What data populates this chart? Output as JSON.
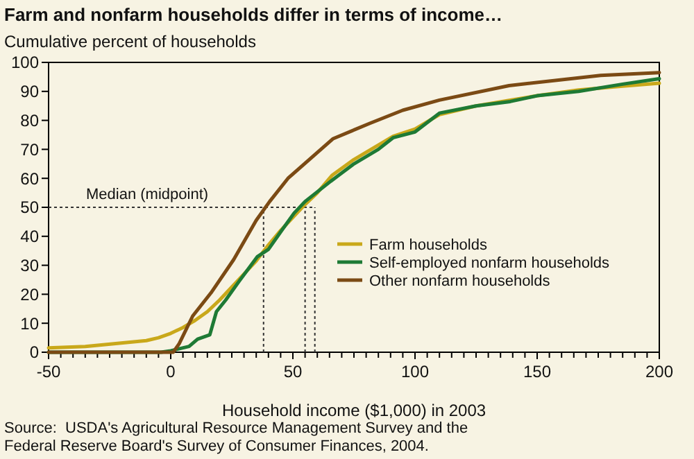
{
  "chart_data": {
    "type": "line",
    "title": "Farm and nonfarm households differ in terms of income…",
    "ylabel": "Cumulative percent of households",
    "xlabel": "Household income ($1,000) in 2003",
    "annotations": [
      "Source:  USDA's Agricultural Resource Management Survey and the Federal Reserve Board's Survey of Consumer Finances, 2004."
    ],
    "xlim": [
      -50,
      200
    ],
    "ylim": [
      0,
      100
    ],
    "xticks": [
      -50,
      {
        "value": -45,
        "label": null
      },
      {
        "value": -40,
        "label": null
      },
      {
        "value": -35,
        "label": null
      },
      {
        "value": -30,
        "label": null
      },
      {
        "value": -25,
        "label": null
      },
      {
        "value": -20,
        "label": null
      },
      {
        "value": -15,
        "label": null
      },
      {
        "value": -10,
        "label": null
      },
      {
        "value": -5,
        "label": null
      },
      0,
      {
        "value": 5,
        "label": null
      },
      {
        "value": 10,
        "label": null
      },
      {
        "value": 15,
        "label": null
      },
      {
        "value": 20,
        "label": null
      },
      {
        "value": 25,
        "label": null
      },
      {
        "value": 30,
        "label": null
      },
      {
        "value": 35,
        "label": null
      },
      {
        "value": 40,
        "label": null
      },
      {
        "value": 45,
        "label": null
      },
      50,
      {
        "value": 55,
        "label": null
      },
      {
        "value": 60,
        "label": null
      },
      {
        "value": 65,
        "label": null
      },
      {
        "value": 70,
        "label": null
      },
      {
        "value": 75,
        "label": null
      },
      {
        "value": 80,
        "label": null
      },
      {
        "value": 85,
        "label": null
      },
      {
        "value": 90,
        "label": null
      },
      {
        "value": 95,
        "label": null
      },
      100,
      {
        "value": 105,
        "label": null
      },
      {
        "value": 110,
        "label": null
      },
      {
        "value": 115,
        "label": null
      },
      {
        "value": 120,
        "label": null
      },
      {
        "value": 125,
        "label": null
      },
      {
        "value": 130,
        "label": null
      },
      {
        "value": 135,
        "label": null
      },
      {
        "value": 140,
        "label": null
      },
      {
        "value": 145,
        "label": null
      },
      150,
      {
        "value": 155,
        "label": null
      },
      {
        "value": 160,
        "label": null
      },
      {
        "value": 165,
        "label": null
      },
      {
        "value": 170,
        "label": null
      },
      {
        "value": 175,
        "label": null
      },
      {
        "value": 180,
        "label": null
      },
      {
        "value": 185,
        "label": null
      },
      {
        "value": 190,
        "label": null
      },
      {
        "value": 195,
        "label": null
      },
      200
    ],
    "yticks": [
      0,
      10,
      20,
      30,
      40,
      50,
      60,
      70,
      80,
      90,
      100
    ],
    "grid": false,
    "legend": "right",
    "marker": "none",
    "line_style": "solid",
    "ref_lines": [
      {
        "axis": "y",
        "value": 50,
        "label": "Median (midpoint)",
        "line_style": "dotted",
        "color": "#333333"
      },
      {
        "axis": "x",
        "value": 38,
        "line_style": "dotted",
        "color": "#333333"
      },
      {
        "axis": "x",
        "value": 55,
        "line_style": "dotted",
        "color": "#333333"
      },
      {
        "axis": "x",
        "value": 59,
        "line_style": "dotted",
        "color": "#333333"
      }
    ],
    "series": [
      {
        "name": "Farm households",
        "color": "#c9a81a",
        "x": [
          -50,
          -35,
          -22.5,
          -10,
          -5,
          0,
          5,
          10,
          15,
          20,
          25,
          30,
          35,
          40,
          45,
          50,
          55,
          60,
          66,
          75,
          91,
          100,
          110,
          125,
          139,
          150,
          167,
          185,
          200
        ],
        "values": [
          1.5,
          2,
          3,
          4,
          5,
          6.5,
          8.5,
          11,
          14,
          18,
          22.5,
          27,
          31.5,
          37,
          42,
          46.5,
          51,
          55,
          61,
          66.5,
          74.5,
          77,
          82,
          85,
          87,
          88.5,
          90.5,
          91.8,
          92.8
        ]
      },
      {
        "name": "Self-employed nonfarm households",
        "color": "#1e7a35",
        "x": [
          -50,
          -4,
          0,
          7.5,
          11,
          16,
          18.7,
          22.5,
          28,
          35.5,
          40,
          45,
          50.5,
          55,
          65.5,
          75,
          85,
          91,
          100,
          110,
          125,
          139,
          150,
          167,
          185,
          200
        ],
        "values": [
          0,
          0,
          0.5,
          2,
          4.5,
          6,
          14,
          18,
          24.5,
          33,
          35.5,
          41.5,
          48,
          52,
          59,
          65,
          70,
          74,
          76,
          82.5,
          85,
          86.5,
          88.5,
          90,
          92.5,
          94.4
        ]
      },
      {
        "name": "Other nonfarm households",
        "color": "#7b4a14",
        "x": [
          -50,
          1,
          3.5,
          9,
          16.5,
          25.8,
          35,
          40.5,
          48,
          66.5,
          81.6,
          95,
          110,
          138.5,
          176,
          200
        ],
        "values": [
          0,
          0,
          3,
          12.5,
          20.5,
          32,
          45.5,
          52,
          60,
          73.7,
          79,
          83.5,
          87,
          92,
          95.5,
          96.5
        ]
      }
    ]
  }
}
